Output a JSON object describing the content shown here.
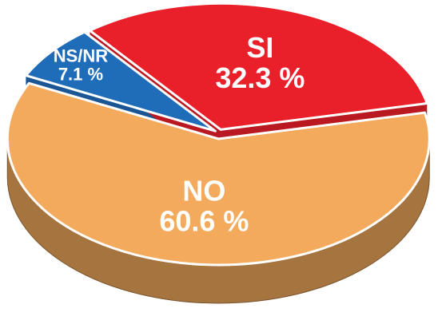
{
  "chart_data": {
    "type": "pie",
    "categories": [
      "NO",
      "NS/NR",
      "SI"
    ],
    "values": [
      60.6,
      7.1,
      32.3
    ],
    "value_labels": [
      "60.6 %",
      "7.1 %",
      "32.3 %"
    ],
    "colors": [
      "#f3aa5c",
      "#1f6cb8",
      "#e91f29"
    ]
  }
}
